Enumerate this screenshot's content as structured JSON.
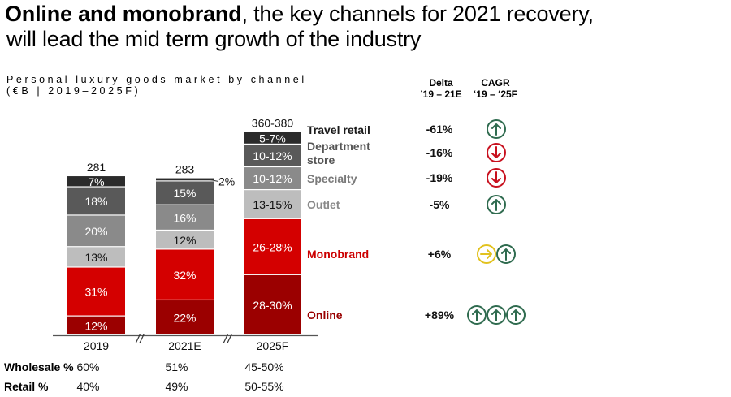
{
  "title": {
    "bold": "Online and monobrand",
    "rest": ", the key channels for 2021 recovery,",
    "line2": "will lead the mid term growth of the industry"
  },
  "subtitle": {
    "line1": "Personal luxury goods market by channel",
    "line2": "(€B | 2019–2025F)"
  },
  "columns": {
    "delta_header_1": "Delta",
    "delta_header_2": "’19 – 21E",
    "cagr_header_1": "CAGR",
    "cagr_header_2": "‘19 – ‘25F"
  },
  "colors": {
    "travel_retail": "#2b2b2b",
    "department_store": "#595959",
    "specialty": "#8a8a8a",
    "outlet": "#bdbdbd",
    "monobrand": "#d40000",
    "online": "#9b0000",
    "up": "#2f6b4f",
    "down": "#c8101e",
    "flat": "#e2c21e"
  },
  "chart_data": {
    "type": "bar",
    "stacked": true,
    "title": "Personal luxury goods market by channel",
    "subtitle": "(€B | 2019–2025F)",
    "categories": [
      "2019",
      "2021E",
      "2025F"
    ],
    "totals": [
      "281",
      "283",
      "360-380"
    ],
    "total_values": [
      281,
      283,
      370
    ],
    "series": [
      {
        "name": "Online",
        "key": "online",
        "values": [
          12,
          22,
          29
        ],
        "labels": [
          "12%",
          "22%",
          "28-30%"
        ],
        "delta": "+89%",
        "cagr": [
          "up",
          "up",
          "up"
        ]
      },
      {
        "name": "Monobrand",
        "key": "monobrand",
        "values": [
          31,
          32,
          27
        ],
        "labels": [
          "31%",
          "32%",
          "26-28%"
        ],
        "delta": "+6%",
        "cagr": [
          "flat",
          "up"
        ]
      },
      {
        "name": "Outlet",
        "key": "outlet",
        "values": [
          13,
          12,
          14
        ],
        "labels": [
          "13%",
          "12%",
          "13-15%"
        ],
        "delta": "-5%",
        "cagr": [
          "up"
        ]
      },
      {
        "name": "Specialty",
        "key": "specialty",
        "values": [
          20,
          16,
          11
        ],
        "labels": [
          "20%",
          "16%",
          "10-12%"
        ],
        "delta": "-19%",
        "cagr": [
          "down"
        ]
      },
      {
        "name": "Department store",
        "key": "department_store",
        "values": [
          18,
          15,
          11
        ],
        "labels": [
          "18%",
          "15%",
          "10-12%"
        ],
        "delta": "-16%",
        "cagr": [
          "down"
        ]
      },
      {
        "name": "Travel retail",
        "key": "travel_retail",
        "values": [
          7,
          2,
          6
        ],
        "labels": [
          "7%",
          "2%",
          "5-7%"
        ],
        "delta": "-61%",
        "cagr": [
          "up"
        ]
      }
    ],
    "legend_labels": [
      "Travel retail",
      "Department\nstore",
      "Specialty",
      "Outlet",
      "Monobrand",
      "Online"
    ],
    "axis_break_markers": [
      "//",
      "//"
    ],
    "xlabel": "",
    "ylabel": ""
  },
  "footer_rows": [
    {
      "label": "Wholesale %",
      "values": [
        "60%",
        "51%",
        "45-50%"
      ]
    },
    {
      "label": "Retail %",
      "values": [
        "40%",
        "49%",
        "50-55%"
      ]
    }
  ]
}
